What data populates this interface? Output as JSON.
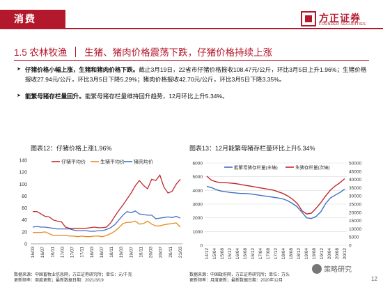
{
  "header": {
    "section_tag": "消费",
    "logo_cn": "方正证券",
    "logo_en": "FOUNDER SECURITIES"
  },
  "section": {
    "number": "1.5",
    "name": "农林牧渔",
    "subtitle": "生猪、猪肉价格震荡下跌，仔猪价格持续上涨"
  },
  "bullets": [
    {
      "bold": "仔猪价格小幅上涨，生猪和猪肉价格下跌。",
      "text": "截止3月19日，22省市仔猪价格报收108.47元/公斤，环比3月5日上升1.96%；生猪价格报收27.94元/公斤，环比3月5日下降5.29%；猪肉价格报收42.70元/公斤，环比3月5日下降3.35%。"
    },
    {
      "bold": "能繁母猪存栏量回升。",
      "text": "能繁母猪存栏量维持回升趋势，12月环比上升5.34%。"
    }
  ],
  "chart_left": {
    "title": "图表12：仔猪价格上涨1.96%",
    "source_line1": "数据来源：中国畜牧业信息网，方正证券研究所；单位：元/千克",
    "source_line2": "更新频率：周度更新；最新数据日期：2021/3/19",
    "legend_color": {
      "piglet": "#c1272d",
      "hog": "#e58a1f",
      "pork": "#3f6fc4"
    }
  },
  "chart_right": {
    "title": "图表13：12月能繁母猪存栏量环比上升5.34%",
    "source_line1": "数据来源：中国政府网，方正证券研究所；单位：万头",
    "source_line2": "更新频率：月度更新；最新数据日期：2020年12月",
    "legend_color": {
      "main": "#3f6fc4",
      "secondary": "#c1272d"
    }
  },
  "chart_data": [
    {
      "type": "line",
      "title": "图表12：仔猪价格上涨1.96%",
      "ylim": [
        0,
        140
      ],
      "yticks": [
        0,
        20,
        40,
        60,
        80,
        100,
        120,
        140
      ],
      "x_ticks": [
        "16/03",
        "16/07",
        "16/11",
        "17/03",
        "17/07",
        "17/11",
        "18/03",
        "18/07",
        "18/11",
        "19/03",
        "19/07",
        "19/11",
        "20/03",
        "20/07",
        "20/11",
        "21/03"
      ],
      "grid": false,
      "legend": "top",
      "series": [
        {
          "name": "仔猪平均价",
          "color": "#c1272d",
          "values": [
            54,
            54,
            50,
            46,
            45,
            40,
            38,
            37,
            28,
            26,
            26,
            26,
            26,
            26,
            27,
            28,
            27,
            27,
            28,
            35,
            46,
            56,
            65,
            75,
            85,
            97,
            106,
            98,
            92,
            108,
            106,
            115,
            95,
            85,
            88,
            100,
            108
          ]
        },
        {
          "name": "生猪平均价",
          "color": "#e58a1f",
          "values": [
            19,
            19,
            19,
            20,
            17,
            14,
            14,
            14,
            14,
            13,
            13,
            12,
            13,
            12,
            12,
            13,
            13,
            12,
            14,
            17,
            21,
            27,
            34,
            36,
            36,
            38,
            33,
            34,
            38,
            33,
            30,
            30,
            32,
            33,
            34,
            35,
            28
          ]
        },
        {
          "name": "猪肉均价",
          "color": "#3f6fc4",
          "values": [
            28,
            29,
            28,
            28,
            27,
            26,
            25,
            25,
            25,
            25,
            23,
            22,
            22,
            22,
            21,
            21,
            22,
            22,
            24,
            27,
            32,
            40,
            48,
            54,
            52,
            55,
            50,
            49,
            48,
            48,
            42,
            43,
            44,
            45,
            44,
            46,
            43
          ]
        }
      ]
    },
    {
      "type": "line",
      "title": "图表13：12月能繁母猪存栏量环比上升5.34%",
      "ylim_left": [
        0,
        6000
      ],
      "yticks_left": [
        0,
        1000,
        2000,
        3000,
        4000,
        5000,
        6000
      ],
      "ylim_right": [
        0,
        50000
      ],
      "yticks_right": [
        0,
        5000,
        10000,
        15000,
        20000,
        25000,
        30000,
        35000,
        40000,
        45000,
        50000
      ],
      "x_ticks": [
        "14/12",
        "15/04",
        "15/08",
        "15/12",
        "16/04",
        "16/08",
        "16/12",
        "17/04",
        "17/08",
        "17/12",
        "18/04",
        "18/08",
        "18/12",
        "19/04",
        "19/08",
        "19/12",
        "20/04",
        "20/08",
        "20/12"
      ],
      "grid": true,
      "legend": "top-left",
      "series": [
        {
          "name": "能繁母猪存栏量(主轴)",
          "axis": "left",
          "color": "#3f6fc4",
          "values": [
            4300,
            4200,
            4050,
            3950,
            3900,
            3850,
            3820,
            3780,
            3780,
            3750,
            3700,
            3650,
            3600,
            3550,
            3500,
            3450,
            3380,
            3250,
            3050,
            2800,
            2400,
            2000,
            1950,
            2100,
            2450,
            3050,
            3450,
            3650,
            3850,
            4100
          ]
        },
        {
          "name": "生猪存栏量(次轴)",
          "axis": "right",
          "color": "#c1272d",
          "values": [
            42000,
            39500,
            38500,
            38000,
            38000,
            37800,
            37500,
            37000,
            36500,
            36000,
            35500,
            35000,
            34500,
            34000,
            33500,
            32500,
            31500,
            30000,
            28000,
            25500,
            21000,
            19000,
            19500,
            22500,
            26000,
            30000,
            33500,
            36000,
            38000,
            40500
          ]
        }
      ]
    }
  ],
  "footer": {
    "watermark": "策略研究",
    "page": "12"
  }
}
